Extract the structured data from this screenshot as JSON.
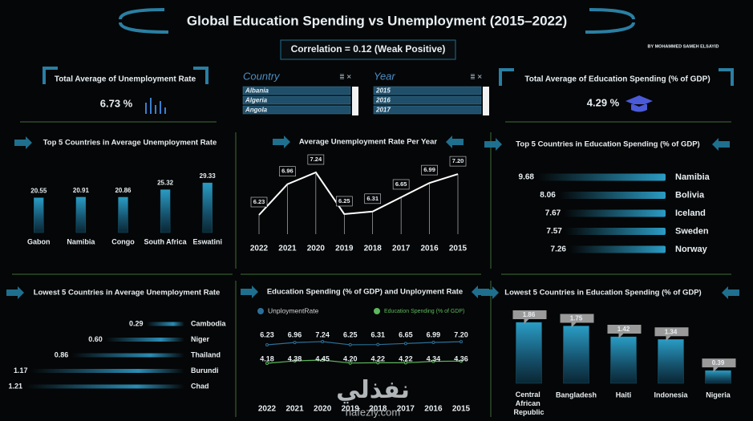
{
  "header": {
    "title": "Global Education Spending vs Unemployment (2015–2022)",
    "correlation": "Correlation = 0.12  (Weak Positive)",
    "author": "BY MOHAMMED SAMEH ELSAYID"
  },
  "kpis": [
    {
      "title": "Total Average of Unemployment Rate",
      "value": "6.73 %"
    },
    {
      "title": "Total Average of Education Spending (% of GDP)",
      "value": "4.29 %"
    }
  ],
  "slicers": [
    {
      "title": "Country",
      "items": [
        "Albania",
        "Algeria",
        "Angola"
      ]
    },
    {
      "title": "Year",
      "items": [
        "2015",
        "2016",
        "2017"
      ]
    }
  ],
  "watermark": {
    "arabic": "نفذلي",
    "site": "nafezly.com"
  },
  "chart_data": [
    {
      "type": "bar",
      "orientation": "vertical",
      "title": "Top 5 Countries in Average Unemployment Rate",
      "categories": [
        "Gabon",
        "Namibia",
        "Congo",
        "South Africa",
        "Eswatini"
      ],
      "values": [
        20.55,
        20.91,
        20.86,
        25.32,
        29.33
      ],
      "color": "#1f7fa3"
    },
    {
      "type": "line",
      "title": "Average Unemployment Rate Per Year",
      "categories": [
        "2022",
        "2021",
        "2020",
        "2019",
        "2018",
        "2017",
        "2016",
        "2015"
      ],
      "series": [
        {
          "values": [
            6.23,
            6.96,
            7.24,
            6.25,
            6.31,
            6.65,
            6.99,
            7.2
          ],
          "value_labels": [
            "6.23",
            "6.96",
            "7.24",
            "6.25",
            "6.31",
            "6.65",
            "6.99",
            "7.20"
          ],
          "color": "#ffffff"
        }
      ]
    },
    {
      "type": "bar",
      "orientation": "horizontal",
      "title": "Top 5 Countries in Education Spending (% of GDP)",
      "categories": [
        "Namibia",
        "Bolivia",
        "Iceland",
        "Sweden",
        "Norway"
      ],
      "values": [
        9.68,
        8.06,
        7.67,
        7.57,
        7.26
      ],
      "color": "#1f7fa3"
    },
    {
      "type": "bar",
      "orientation": "horizontal",
      "title": "Lowest 5 Countries in Average Unemployment Rate",
      "categories": [
        "Cambodia",
        "Niger",
        "Thailand",
        "Burundi",
        "Chad"
      ],
      "values": [
        0.29,
        0.6,
        0.86,
        1.17,
        1.21
      ],
      "value_labels": [
        "0.29",
        "0.60",
        "0.86",
        "1.17",
        "1.21"
      ],
      "color": "#1f7fa3"
    },
    {
      "type": "line",
      "title": "Education Spending (% of GDP) and Unployment Rate",
      "categories": [
        "2022",
        "2021",
        "2020",
        "2019",
        "2018",
        "2017",
        "2016",
        "2015"
      ],
      "series": [
        {
          "name": "UnploymentRate",
          "color": "#2a6f9a",
          "values": [
            6.23,
            6.96,
            7.24,
            6.25,
            6.31,
            6.65,
            6.99,
            7.2
          ],
          "value_labels": [
            "6.23",
            "6.96",
            "7.24",
            "6.25",
            "6.31",
            "6.65",
            "6.99",
            "7.20"
          ]
        },
        {
          "name": "Education Spending (% of GDP)",
          "color": "#5cb85c",
          "values": [
            4.18,
            4.38,
            4.45,
            4.2,
            4.22,
            4.22,
            4.34,
            4.36
          ],
          "value_labels": [
            "4.18",
            "4.38",
            "4.45",
            "4.20",
            "4.22",
            "4.22",
            "4.34",
            "4.36"
          ]
        }
      ]
    },
    {
      "type": "bar",
      "orientation": "vertical",
      "title": "Lowest 5 Countries in Education Spending (% of GDP)",
      "categories": [
        "Central African Republic",
        "Bangladesh",
        "Haiti",
        "Indonesia",
        "Nigeria"
      ],
      "values": [
        1.86,
        1.75,
        1.42,
        1.34,
        0.39
      ],
      "color": "#1f7fa3"
    }
  ]
}
